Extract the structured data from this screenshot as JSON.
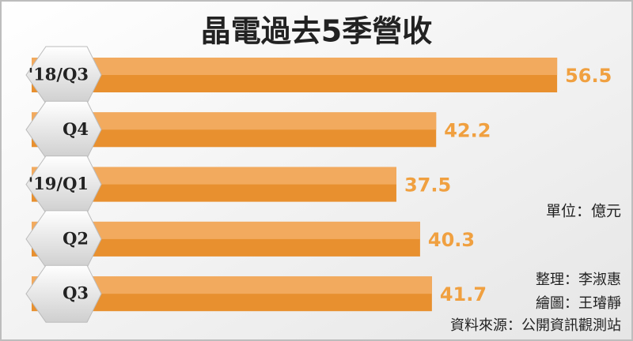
{
  "chart_data": {
    "type": "bar",
    "orientation": "horizontal",
    "title": "晶電過去5季營收",
    "categories": [
      "'18/Q3",
      "Q4",
      "'19/Q1",
      "Q2",
      "Q3"
    ],
    "values": [
      56.5,
      42.2,
      37.5,
      40.3,
      41.7
    ],
    "color": "#e8902f",
    "xlim": [
      0,
      65
    ],
    "unit_note": "單位：億元",
    "credits": [
      "整理：李淑惠",
      "繪圖：王璿靜",
      "資料來源：公開資訊觀測站"
    ]
  }
}
